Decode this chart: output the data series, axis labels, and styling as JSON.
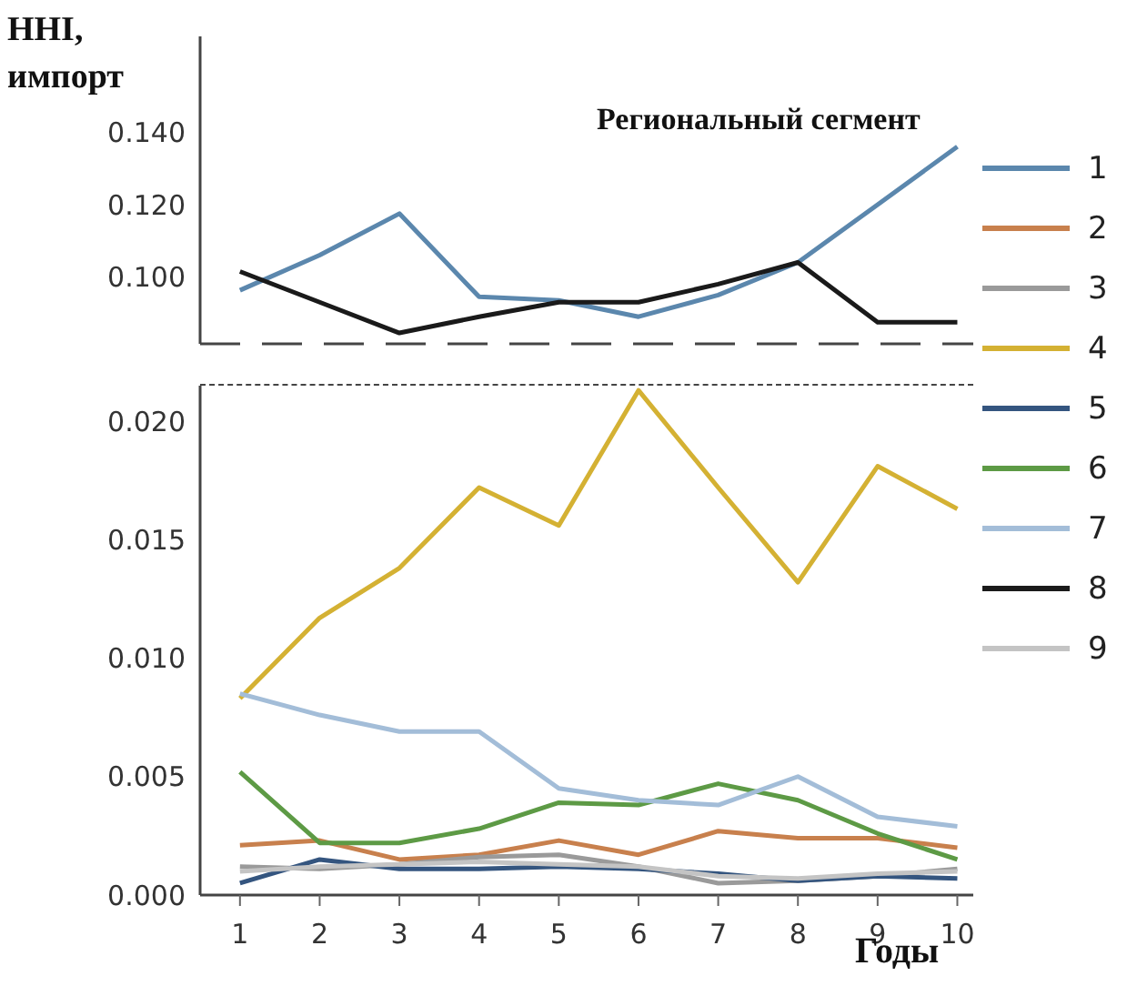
{
  "chart_data": [
    {
      "type": "line",
      "ylabel": "HHI, импорт",
      "legend_title": "Региональный сегмент",
      "legend": "right",
      "tick_labels": "y",
      "x": [
        1,
        2,
        3,
        4,
        5,
        6,
        7,
        8,
        9,
        10
      ],
      "xlim": [
        0.5,
        10.2
      ],
      "xticks": [
        1,
        2,
        3,
        4,
        5,
        6,
        7,
        8,
        9,
        10
      ],
      "ylim": [
        0.0815,
        0.1665
      ],
      "yticks": [
        {
          "value": 0.1,
          "label": "0.100"
        },
        {
          "value": 0.12,
          "label": "0.120"
        },
        {
          "value": 0.14,
          "label": "0.140"
        }
      ],
      "series": [
        {
          "name": "1",
          "color": "#5b87ad",
          "values": [
            0.0963,
            0.106,
            0.1175,
            0.0945,
            0.0935,
            0.089,
            0.095,
            0.104,
            0.12,
            0.136
          ]
        },
        {
          "name": "8",
          "color": "#1a1a1a",
          "values": [
            0.1015,
            0.093,
            0.0845,
            0.089,
            0.093,
            0.093,
            0.098,
            0.104,
            0.0875,
            0.0875
          ]
        }
      ]
    },
    {
      "type": "line",
      "xlabel": "Годы",
      "legend": "right",
      "x": [
        1,
        2,
        3,
        4,
        5,
        6,
        7,
        8,
        9,
        10
      ],
      "xlim": [
        0.5,
        10.2
      ],
      "xticks": [
        1,
        2,
        3,
        4,
        5,
        6,
        7,
        8,
        9,
        10
      ],
      "ylim": [
        0,
        0.0215
      ],
      "yticks": [
        {
          "value": 0,
          "label": "0.000"
        },
        {
          "value": 0.005,
          "label": "0.005"
        },
        {
          "value": 0.01,
          "label": "0.010"
        },
        {
          "value": 0.015,
          "label": "0.015"
        },
        {
          "value": 0.02,
          "label": "0.020"
        }
      ],
      "series": [
        {
          "name": "2",
          "color": "#c8804d",
          "values": [
            0.0021,
            0.0023,
            0.0015,
            0.0017,
            0.0023,
            0.0017,
            0.0027,
            0.0024,
            0.0024,
            0.002
          ]
        },
        {
          "name": "3",
          "color": "#9a9a9a",
          "values": [
            0.0012,
            0.0011,
            0.0013,
            0.0016,
            0.0017,
            0.0012,
            0.0005,
            0.0006,
            0.0008,
            0.0011
          ]
        },
        {
          "name": "4",
          "color": "#d4b133",
          "values": [
            0.0083,
            0.0117,
            0.0138,
            0.0172,
            0.0156,
            0.0213,
            0.0172,
            0.0132,
            0.0181,
            0.0163
          ]
        },
        {
          "name": "5",
          "color": "#34557f",
          "values": [
            0.0005,
            0.0015,
            0.0011,
            0.0011,
            0.0012,
            0.0011,
            0.0009,
            0.0006,
            0.0008,
            0.0007
          ]
        },
        {
          "name": "6",
          "color": "#5d9a45",
          "values": [
            0.0052,
            0.0022,
            0.0022,
            0.0028,
            0.0039,
            0.0038,
            0.0047,
            0.004,
            0.0026,
            0.0015
          ]
        },
        {
          "name": "7",
          "color": "#a3bdd8",
          "values": [
            0.0085,
            0.0076,
            0.0069,
            0.0069,
            0.0045,
            0.004,
            0.0038,
            0.005,
            0.0033,
            0.0029
          ]
        },
        {
          "name": "9",
          "color": "#c4c4c4",
          "values": [
            0.001,
            0.0012,
            0.0013,
            0.0014,
            0.0013,
            0.0012,
            0.0008,
            0.0007,
            0.0009,
            0.001
          ]
        }
      ]
    }
  ]
}
